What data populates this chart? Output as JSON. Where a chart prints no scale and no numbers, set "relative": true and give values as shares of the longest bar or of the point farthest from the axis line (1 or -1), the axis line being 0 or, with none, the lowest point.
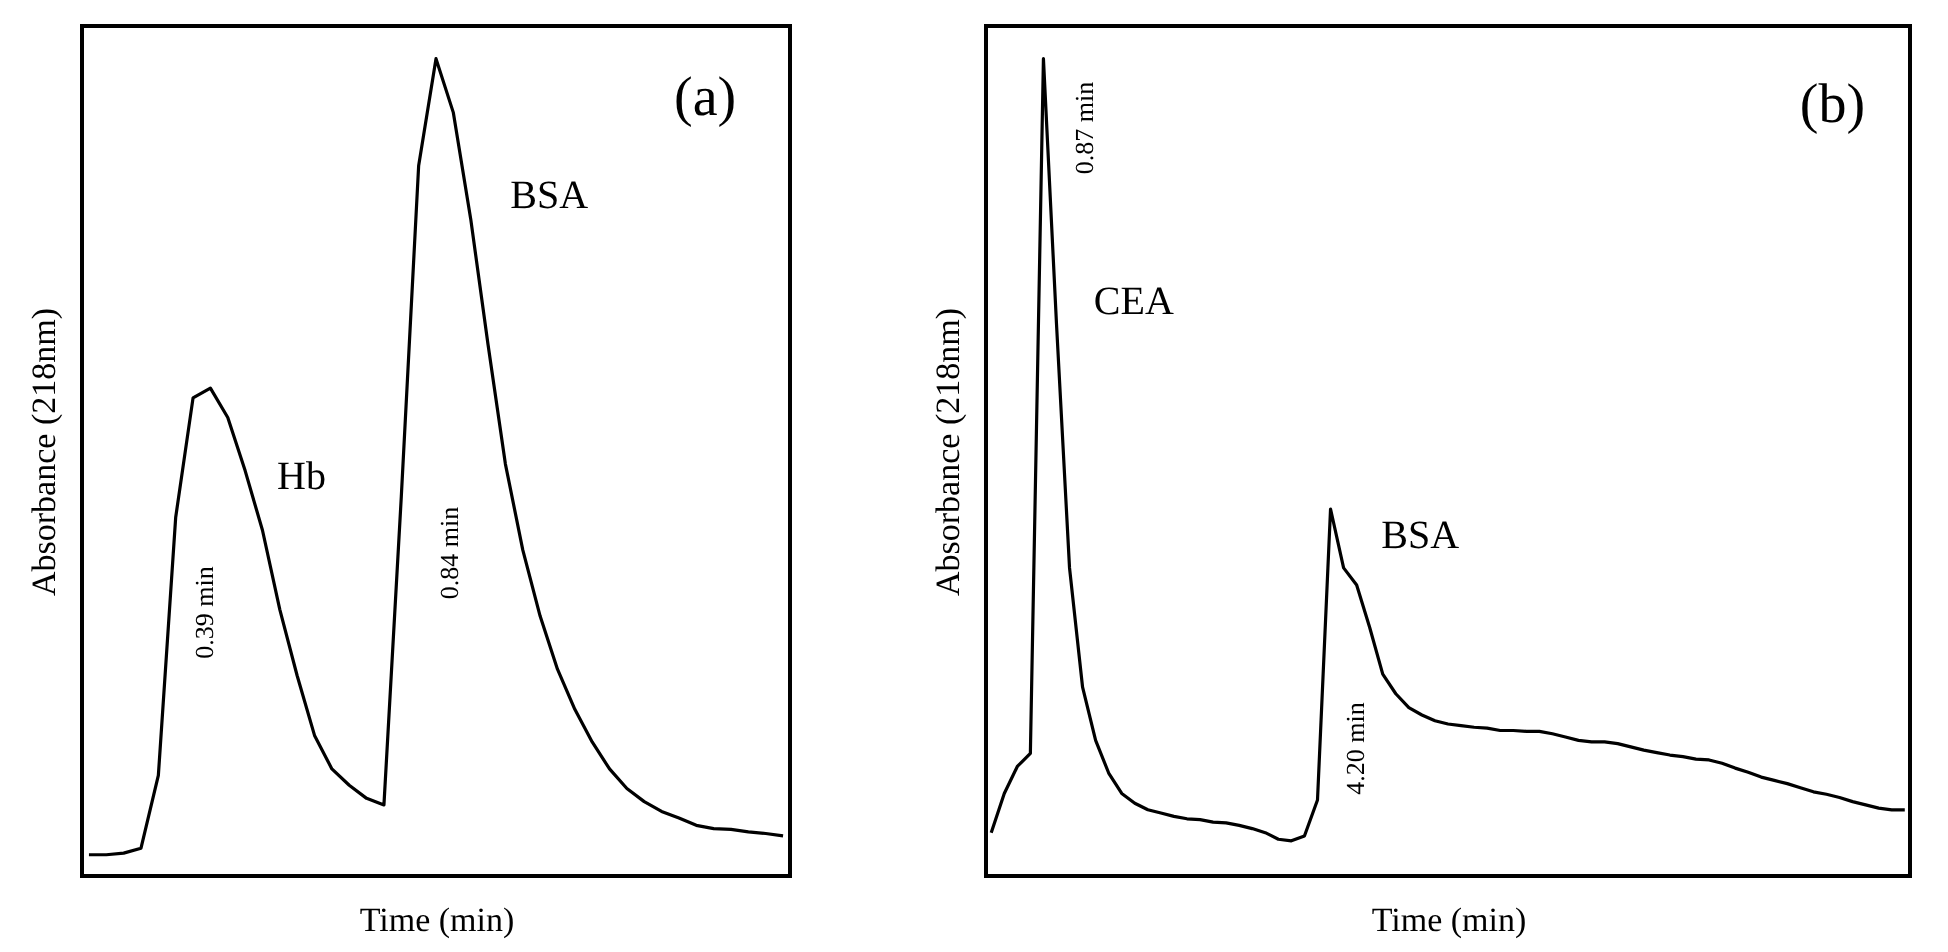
{
  "chart_data": [
    {
      "type": "line",
      "relative": true,
      "xlabel": "Time (min)",
      "ylabel": "Absorbance (218nm)",
      "annotations": [
        "(a)",
        "Hb",
        "BSA",
        "0.39 min",
        "0.84 min"
      ],
      "categories": [
        null,
        null,
        null,
        null,
        null,
        null,
        null,
        null,
        null,
        null,
        null,
        null,
        null,
        null,
        null,
        null,
        null,
        null,
        null,
        null,
        null,
        null,
        null,
        null,
        null,
        null,
        null,
        null,
        null,
        null,
        null,
        null,
        null,
        null,
        null,
        null,
        null,
        null,
        null,
        null,
        null
      ],
      "series": [
        {
          "color": "#000000",
          "values": [
            0.026,
            0.026,
            0.028,
            0.034,
            0.123,
            0.439,
            0.585,
            0.597,
            0.561,
            0.496,
            0.423,
            0.326,
            0.245,
            0.172,
            0.131,
            0.111,
            0.095,
            0.087,
            0.464,
            0.869,
            1,
            0.934,
            0.804,
            0.65,
            0.504,
            0.399,
            0.318,
            0.253,
            0.204,
            0.164,
            0.131,
            0.107,
            0.091,
            0.079,
            0.071,
            0.062,
            0.058,
            0.057,
            0.054,
            0.052,
            0.049
          ]
        }
      ]
    },
    {
      "type": "line",
      "relative": true,
      "xlabel": "Time (min)",
      "ylabel": "Absorbance (218nm)",
      "annotations": [
        "(b)",
        "CEA",
        "BSA",
        "0.87 min",
        "4.20 min"
      ],
      "categories": [
        null,
        null,
        null,
        null,
        null,
        null,
        null,
        null,
        null,
        null,
        null,
        null,
        null,
        null,
        null,
        null,
        null,
        null,
        null,
        null,
        null,
        null,
        null,
        null,
        null,
        null,
        null,
        null,
        null,
        null,
        null,
        null,
        null,
        null,
        null,
        null,
        null,
        null,
        null,
        null,
        null,
        null,
        null,
        null,
        null,
        null,
        null,
        null,
        null,
        null,
        null,
        null,
        null,
        null,
        null,
        null,
        null,
        null,
        null,
        null,
        null,
        null,
        null,
        null,
        null,
        null,
        null,
        null,
        null,
        null,
        null
      ],
      "series": [
        {
          "color": "#000000",
          "values": [
            0.053,
            0.101,
            0.134,
            0.15,
            1,
            0.676,
            0.377,
            0.231,
            0.166,
            0.126,
            0.101,
            0.089,
            0.081,
            0.077,
            0.073,
            0.07,
            0.069,
            0.066,
            0.065,
            0.062,
            0.058,
            0.053,
            0.045,
            0.043,
            0.049,
            0.093,
            0.449,
            0.377,
            0.356,
            0.304,
            0.247,
            0.223,
            0.206,
            0.197,
            0.19,
            0.186,
            0.184,
            0.182,
            0.181,
            0.178,
            0.178,
            0.177,
            0.177,
            0.174,
            0.17,
            0.166,
            0.164,
            0.164,
            0.162,
            0.158,
            0.154,
            0.151,
            0.148,
            0.146,
            0.143,
            0.142,
            0.138,
            0.132,
            0.127,
            0.121,
            0.117,
            0.113,
            0.108,
            0.103,
            0.1,
            0.096,
            0.091,
            0.087,
            0.083,
            0.081,
            0.081
          ]
        }
      ]
    }
  ]
}
